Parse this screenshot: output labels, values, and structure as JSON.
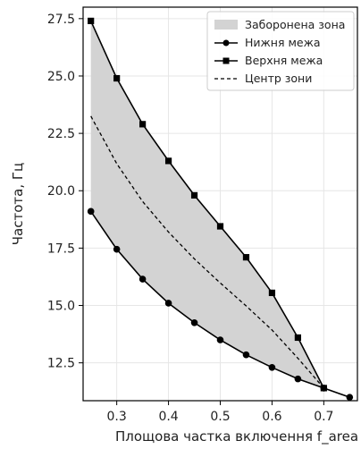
{
  "chart_data": {
    "type": "line",
    "title": "",
    "xlabel": "Площова частка включення f_area",
    "ylabel": "Частота, Гц",
    "xlim": [
      0.235,
      0.765
    ],
    "ylim": [
      10.85,
      28.0
    ],
    "xticks": [
      0.3,
      0.4,
      0.5,
      0.6,
      0.7
    ],
    "xtick_labels": [
      "0.3",
      "0.4",
      "0.5",
      "0.6",
      "0.7"
    ],
    "yticks": [
      12.5,
      15.0,
      17.5,
      20.0,
      22.5,
      25.0,
      27.5
    ],
    "ytick_labels": [
      "12.5",
      "15.0",
      "17.5",
      "20.0",
      "22.5",
      "25.0",
      "27.5"
    ],
    "grid": true,
    "legend_position": "top-right",
    "series": [
      {
        "name": "Нижня межа",
        "style": "solid",
        "marker": "circle",
        "color": "#000000",
        "x": [
          0.25,
          0.3,
          0.35,
          0.4,
          0.45,
          0.5,
          0.55,
          0.6,
          0.65,
          0.7,
          0.75
        ],
        "y": [
          19.1,
          17.45,
          16.15,
          15.1,
          14.25,
          13.5,
          12.85,
          12.3,
          11.8,
          11.4,
          11.0
        ]
      },
      {
        "name": "Верхня межа",
        "style": "solid",
        "marker": "square",
        "color": "#000000",
        "x": [
          0.25,
          0.3,
          0.35,
          0.4,
          0.45,
          0.5,
          0.55,
          0.6,
          0.65,
          0.7
        ],
        "y": [
          27.4,
          24.9,
          22.9,
          21.3,
          19.8,
          18.45,
          17.1,
          15.55,
          13.6,
          11.4
        ]
      },
      {
        "name": "Центр зони",
        "style": "dashed",
        "marker": "none",
        "color": "#000000",
        "x": [
          0.25,
          0.3,
          0.35,
          0.4,
          0.45,
          0.5,
          0.55,
          0.6,
          0.65,
          0.7
        ],
        "y": [
          23.25,
          21.18,
          19.53,
          18.2,
          17.03,
          15.98,
          14.98,
          13.93,
          12.7,
          11.4
        ]
      }
    ],
    "filled_region": {
      "name": "Заборонена зона",
      "between": [
        "Нижня межа",
        "Верхня межа"
      ],
      "color": "#d3d3d3"
    }
  }
}
